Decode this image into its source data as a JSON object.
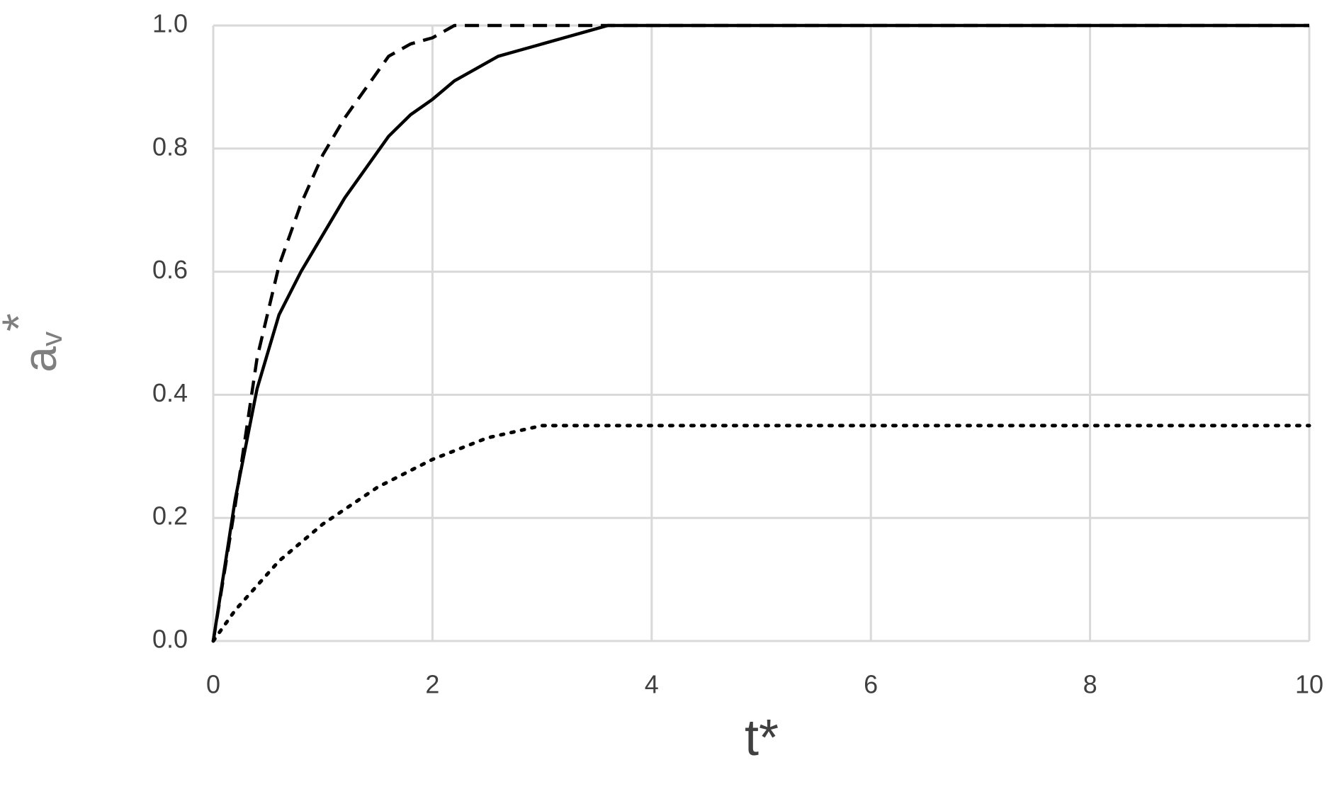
{
  "chart_data": {
    "type": "line",
    "xlabel": "t*",
    "ylabel": [
      "a",
      "v",
      "*"
    ],
    "xlim": [
      0,
      10
    ],
    "xticks": [
      0,
      2,
      4,
      6,
      8,
      10
    ],
    "ylim": [
      0,
      1
    ],
    "yticks": [
      {
        "value": 0,
        "label": "0.0"
      },
      {
        "value": 0.2,
        "label": "0.2"
      },
      {
        "value": 0.4,
        "label": "0.4"
      },
      {
        "value": 0.6,
        "label": "0.6"
      },
      {
        "value": 0.8,
        "label": "0.8"
      },
      {
        "value": 1,
        "label": "1.0"
      }
    ],
    "grid": true,
    "series": [
      {
        "color": "#000000",
        "dash": "solid",
        "x": [
          0,
          0.2,
          0.4,
          0.6,
          0.8,
          1.0,
          1.2,
          1.4,
          1.6,
          1.8,
          2.0,
          2.2,
          2.4,
          2.6,
          2.8,
          3.0,
          3.2,
          3.4,
          3.6,
          10
        ],
        "values": [
          0,
          0.23,
          0.41,
          0.53,
          0.6,
          0.66,
          0.72,
          0.77,
          0.82,
          0.855,
          0.88,
          0.91,
          0.93,
          0.95,
          0.96,
          0.97,
          0.98,
          0.99,
          1.0,
          1.0
        ]
      },
      {
        "color": "#000000",
        "dash": "dashed",
        "x": [
          0,
          0.2,
          0.4,
          0.6,
          0.8,
          1.0,
          1.2,
          1.4,
          1.6,
          1.8,
          2.0,
          2.2,
          10
        ],
        "values": [
          0,
          0.22,
          0.46,
          0.61,
          0.71,
          0.79,
          0.85,
          0.9,
          0.95,
          0.97,
          0.98,
          1.0,
          1.0
        ]
      },
      {
        "color": "#000000",
        "dash": "dotted",
        "x": [
          0,
          0.2,
          0.4,
          0.6,
          0.8,
          1.0,
          1.5,
          2.0,
          2.5,
          3.0,
          10
        ],
        "values": [
          0,
          0.05,
          0.09,
          0.13,
          0.16,
          0.19,
          0.25,
          0.295,
          0.33,
          0.35,
          0.35
        ]
      }
    ]
  }
}
